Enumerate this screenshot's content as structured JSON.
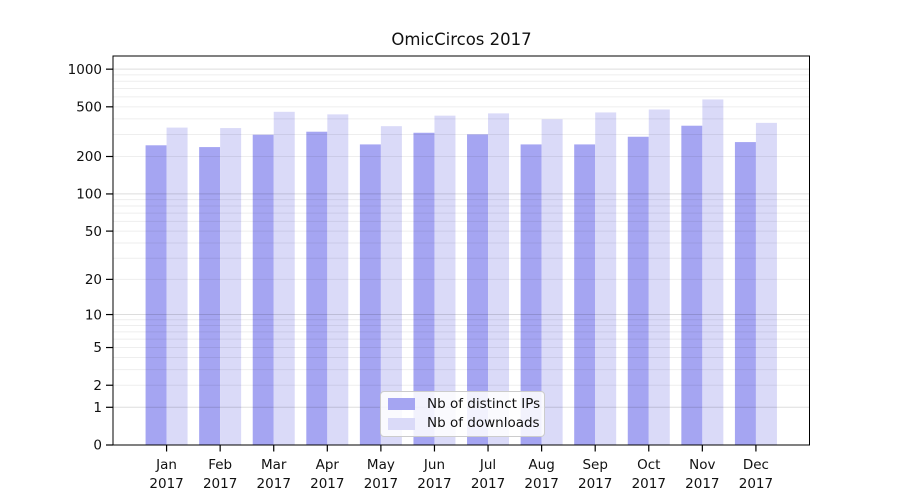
{
  "figure": {
    "title": "OmicCircos 2017"
  },
  "legend": {
    "items": [
      {
        "label": "Nb of distinct IPs",
        "series": "distinct_ips"
      },
      {
        "label": "Nb of downloads",
        "series": "downloads"
      }
    ]
  },
  "colors": {
    "distinct_ips": "#a5a5f2",
    "downloads": "#dadaf8",
    "axis": "#000000",
    "text": "#111111",
    "grid_minor": "rgba(0,0,0,0.065)",
    "grid_major": "rgba(0,0,0,0.135)",
    "legend_bg": "rgba(255,255,255,0.85)",
    "legend_border": "#cccccc"
  },
  "chart_data": {
    "type": "bar",
    "title": "OmicCircos 2017",
    "categories": [
      "Jan 2017",
      "Feb 2017",
      "Mar 2017",
      "Apr 2017",
      "May 2017",
      "Jun 2017",
      "Jul 2017",
      "Aug 2017",
      "Sep 2017",
      "Oct 2017",
      "Nov 2017",
      "Dec 2017"
    ],
    "series": [
      {
        "name": "Nb of distinct IPs",
        "color_key": "distinct_ips",
        "values": [
          246,
          238,
          299,
          316,
          250,
          310,
          301,
          250,
          250,
          288,
          353,
          261
        ]
      },
      {
        "name": "Nb of downloads",
        "color_key": "downloads",
        "values": [
          341,
          338,
          456,
          435,
          350,
          425,
          443,
          398,
          451,
          476,
          573,
          372
        ]
      }
    ],
    "xlabel": "",
    "ylabel": "",
    "yscale": "log1p",
    "ylim": [
      0,
      1000
    ],
    "y_ticks": [
      0,
      1,
      2,
      5,
      10,
      20,
      50,
      100,
      200,
      500,
      1000
    ],
    "grid": true,
    "grid_over_bars": true,
    "legend_position": "inside-bottom-center"
  }
}
